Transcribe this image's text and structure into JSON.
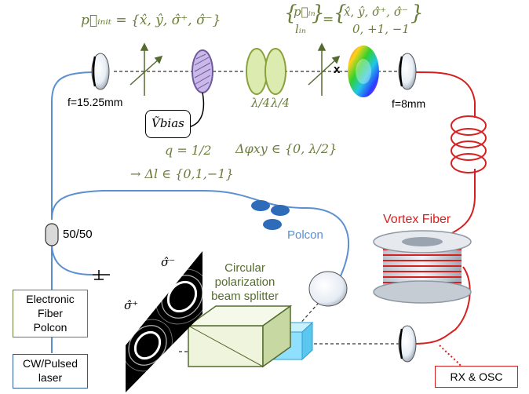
{
  "equations": {
    "p_init": "p⃗ᵢₙᵢₜ = {x̂, ŷ, σ̂⁺, σ̂⁻}",
    "p_in_lhs_1": "p⃗ᵢₙ",
    "p_in_lhs_2": "lᵢₙ",
    "p_in_rhs_1": "x̂, ŷ, σ̂⁺, σ̂⁻",
    "p_in_rhs_2": "0, +1, −1",
    "v_bias": "Ṽbias",
    "q_value": "q = 1/2",
    "delta_l": "→ Δl ∈ {0,1,−1}",
    "delta_phi": "Δφxy ∈ {0, λ/2}"
  },
  "labels": {
    "focal_left": "f=15.25mm",
    "focal_right": "f=8mm",
    "x_mark": "x",
    "quarter_wave_1": "λ/4",
    "quarter_wave_2": "λ/4",
    "splitter_5050": "50/50",
    "polcon": "Polcon",
    "vortex_fiber": "Vortex Fiber",
    "cpbs_line1": "Circular",
    "cpbs_line2": "polarization",
    "cpbs_line3": "beam splitter",
    "sigma_minus": "σ̂⁻",
    "sigma_plus": "σ̂⁺"
  },
  "boxes": {
    "electronic_polcon": [
      "Electronic",
      "Fiber",
      "Polcon"
    ],
    "laser": [
      "CW/Pulsed",
      "laser"
    ],
    "rx_osc": "RX & OSC"
  },
  "colors": {
    "equation_green": "#6b7d3a",
    "fiber_blue": "#5b8fd0",
    "fiber_red": "#d62020",
    "polcon_text": "#5b8fd0",
    "vortex_text": "#d62020"
  }
}
